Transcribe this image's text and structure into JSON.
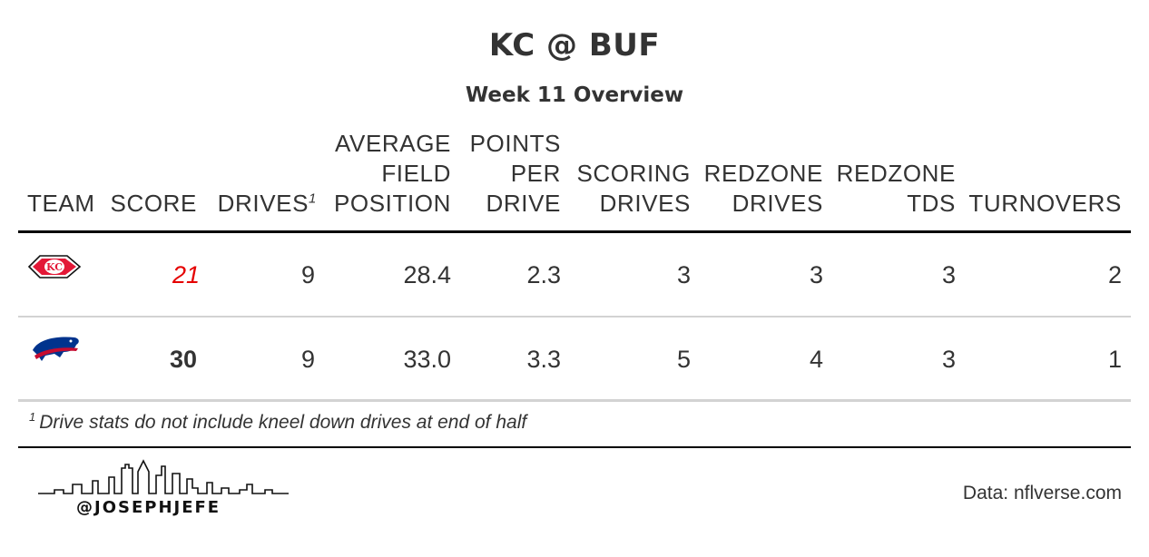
{
  "title": "KC @ BUF",
  "subtitle": "Week 11 Overview",
  "columns": {
    "team": "TEAM",
    "score": "SCORE",
    "drives": "DRIVES",
    "drives_footnote_mark": "1",
    "avg_field_position": [
      "AVERAGE",
      "FIELD",
      "POSITION"
    ],
    "points_per_drive": [
      "POINTS",
      "PER",
      "DRIVE"
    ],
    "scoring_drives": [
      "SCORING",
      "DRIVES"
    ],
    "redzone_drives": [
      "REDZONE",
      "DRIVES"
    ],
    "redzone_tds": [
      "REDZONE",
      "TDS"
    ],
    "turnovers": "TURNOVERS"
  },
  "rows": [
    {
      "team_logo": "chiefs-logo",
      "score": "21",
      "drives": "9",
      "avg_field_position": "28.4",
      "points_per_drive": "2.3",
      "scoring_drives": "3",
      "redzone_drives": "3",
      "redzone_tds": "3",
      "turnovers": "2"
    },
    {
      "team_logo": "bills-logo",
      "score": "30",
      "drives": "9",
      "avg_field_position": "33.0",
      "points_per_drive": "3.3",
      "scoring_drives": "5",
      "redzone_drives": "4",
      "redzone_tds": "3",
      "turnovers": "1"
    }
  ],
  "footnote": {
    "mark": "1",
    "text": "Drive stats do not include kneel down drives at end of half"
  },
  "credit": {
    "handle": "@JOSEPHJEFE",
    "icon": "skyline-icon"
  },
  "source": "Data: nflverse.com",
  "colors": {
    "loser_score": "#e50000",
    "chiefs_red": "#e31837",
    "bills_blue": "#00338d",
    "bills_red": "#c60c30"
  }
}
